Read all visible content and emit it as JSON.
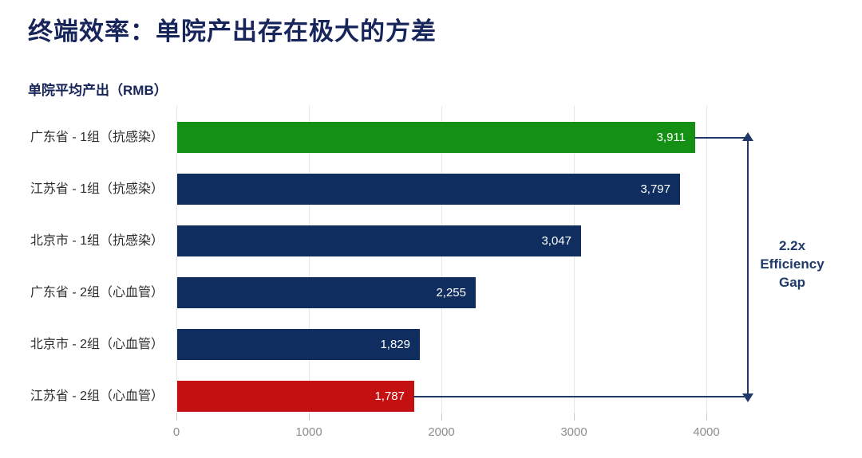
{
  "page": {
    "title": "终端效率：单院产出存在极大的方差",
    "subtitle": "单院平均产出（RMB）"
  },
  "annotation": {
    "lines": [
      "2.2x",
      "Efficiency",
      "Gap"
    ],
    "text": "2.2x Efficiency Gap"
  },
  "colors": {
    "title": "#17255a",
    "subtitle": "#17255a",
    "bar_green": "#149114",
    "bar_navy": "#0f2d5e",
    "bar_red": "#c41011",
    "arrow": "#1f3a68",
    "annotation_text": "#1f3a68",
    "axis_text": "#8c8c8c",
    "gridline": "#e7e7e7",
    "tick": "#c9c9c9",
    "category_text": "#2d2d2d",
    "value_text": "#ffffff"
  },
  "chart_data": {
    "type": "bar",
    "orientation": "horizontal",
    "title": "单院平均产出（RMB）",
    "categories": [
      "广东省 - 1组（抗感染）",
      "江苏省 - 1组（抗感染）",
      "北京市 - 1组（抗感染）",
      "广东省 - 2组（心血管）",
      "北京市 - 2组（心血管）",
      "江苏省 - 2组（心血管）"
    ],
    "values": [
      3911,
      3797,
      3047,
      2255,
      1829,
      1787
    ],
    "value_labels": [
      "3,911",
      "3,797",
      "3,047",
      "2,255",
      "1,829",
      "1,787"
    ],
    "bar_color_keys": [
      "bar_green",
      "bar_navy",
      "bar_navy",
      "bar_navy",
      "bar_navy",
      "bar_red"
    ],
    "x_ticks": [
      0,
      1000,
      2000,
      3000,
      4000
    ],
    "xlim": [
      0,
      4000
    ],
    "grid": true,
    "legend": null,
    "annotation": "2.2x Efficiency Gap"
  }
}
